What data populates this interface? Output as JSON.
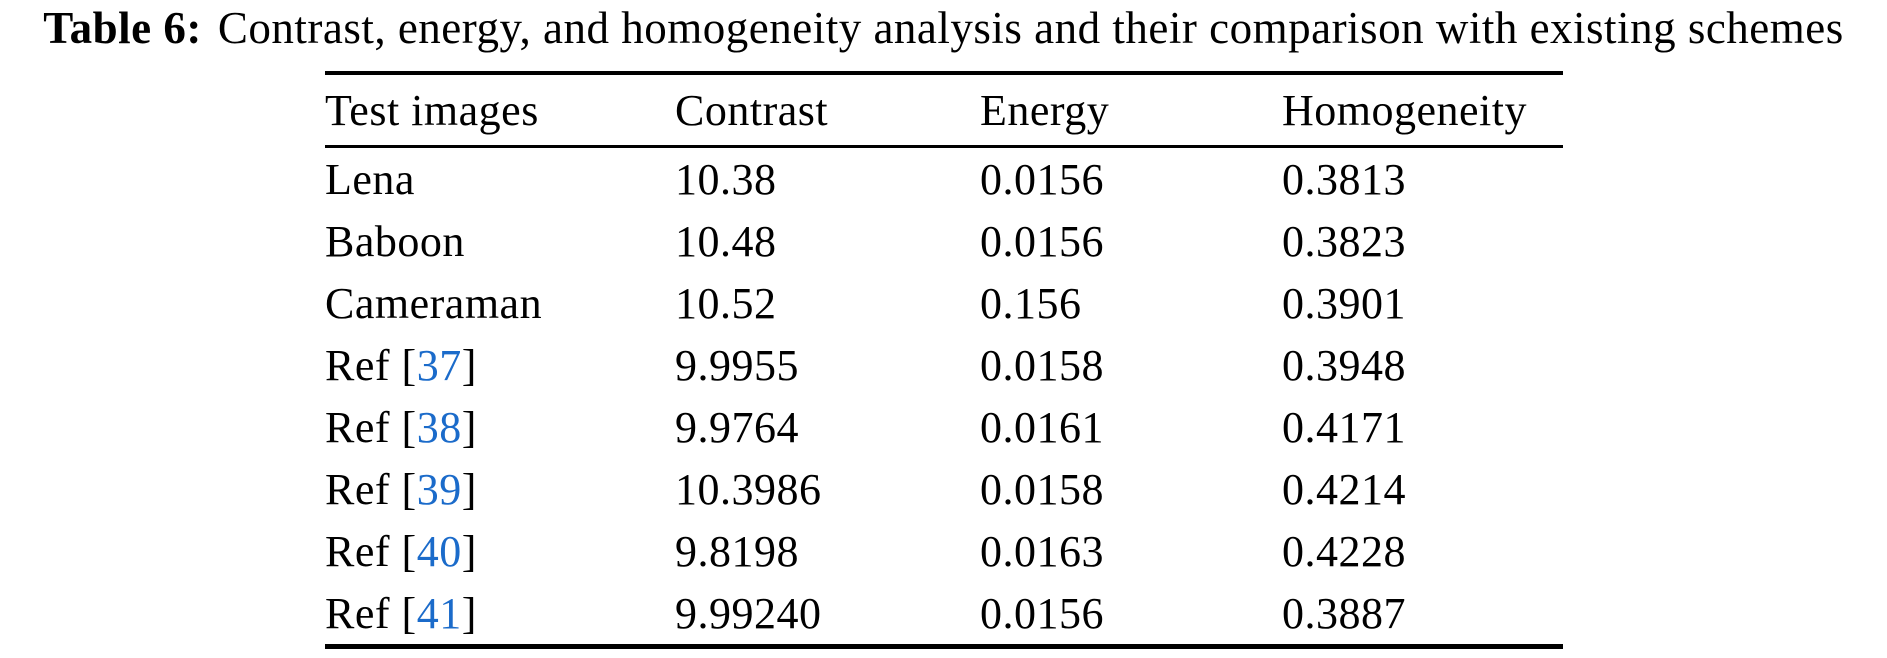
{
  "page": {
    "background": "#ffffff",
    "text_color": "#000000",
    "link_color": "#1b6bca"
  },
  "caption": {
    "label": "Table 6:",
    "text": "Contrast, energy, and homogeneity analysis and their comparison with existing schemes"
  },
  "table": {
    "headers": [
      "Test images",
      "Contrast",
      "Energy",
      "Homogeneity"
    ],
    "rows": [
      {
        "test_image": "Lena",
        "ref_number": null,
        "contrast": "10.38",
        "energy": "0.0156",
        "homogeneity": "0.3813"
      },
      {
        "test_image": "Baboon",
        "ref_number": null,
        "contrast": "10.48",
        "energy": "0.0156",
        "homogeneity": "0.3823"
      },
      {
        "test_image": "Cameraman",
        "ref_number": null,
        "contrast": "10.52",
        "energy": "0.156",
        "homogeneity": "0.3901"
      },
      {
        "test_image": "Ref",
        "ref_number": "37",
        "contrast": "9.9955",
        "energy": "0.0158",
        "homogeneity": "0.3948"
      },
      {
        "test_image": "Ref",
        "ref_number": "38",
        "contrast": "9.9764",
        "energy": "0.0161",
        "homogeneity": "0.4171"
      },
      {
        "test_image": "Ref",
        "ref_number": "39",
        "contrast": "10.3986",
        "energy": "0.0158",
        "homogeneity": "0.4214"
      },
      {
        "test_image": "Ref",
        "ref_number": "40",
        "contrast": "9.8198",
        "energy": "0.0163",
        "homogeneity": "0.4228"
      },
      {
        "test_image": "Ref",
        "ref_number": "41",
        "contrast": "9.99240",
        "energy": "0.0156",
        "homogeneity": "0.3887"
      }
    ]
  }
}
